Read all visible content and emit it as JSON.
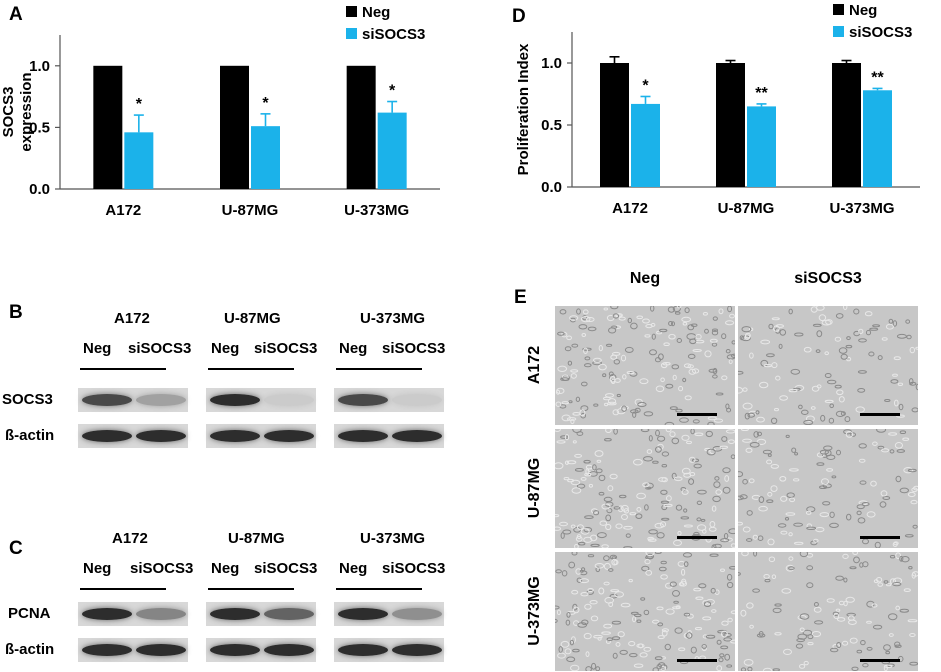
{
  "panels": {
    "A": "A",
    "B": "B",
    "C": "C",
    "D": "D",
    "E": "E"
  },
  "colors": {
    "neg": "#000000",
    "siSOCS3": "#1bb2ea"
  },
  "chart_data": [
    {
      "panel": "A",
      "type": "bar",
      "categories": [
        "A172",
        "U-87MG",
        "U-373MG"
      ],
      "series": [
        {
          "name": "Neg",
          "values": [
            1.0,
            1.0,
            1.0
          ],
          "errors": [
            0.0,
            0.0,
            0.0
          ],
          "sig": [
            "",
            "",
            ""
          ]
        },
        {
          "name": "siSOCS3",
          "values": [
            0.46,
            0.51,
            0.62
          ],
          "errors": [
            0.14,
            0.1,
            0.09
          ],
          "sig": [
            "*",
            "*",
            "*"
          ]
        }
      ],
      "ylabel": "SOCS3\nexpression",
      "ylim": [
        0,
        1.25
      ],
      "yticks": [
        "0.0",
        "0.5",
        "1.0"
      ],
      "legend": "top-right"
    },
    {
      "panel": "D",
      "type": "bar",
      "categories": [
        "A172",
        "U-87MG",
        "U-373MG"
      ],
      "series": [
        {
          "name": "Neg",
          "values": [
            1.0,
            1.0,
            1.0
          ],
          "errors": [
            0.05,
            0.02,
            0.02
          ],
          "sig": [
            "",
            "",
            ""
          ]
        },
        {
          "name": "siSOCS3",
          "values": [
            0.67,
            0.65,
            0.78
          ],
          "errors": [
            0.06,
            0.02,
            0.015
          ],
          "sig": [
            "*",
            "**",
            "**"
          ]
        }
      ],
      "ylabel": "Proliferation Index",
      "ylim": [
        0,
        1.25
      ],
      "yticks": [
        "0.0",
        "0.5",
        "1.0"
      ],
      "legend": "top-right"
    }
  ],
  "blotB": {
    "groups": [
      {
        "cell": "A172",
        "neg": "Neg",
        "si": "siSOCS3",
        "row1": [
          0.85,
          0.45
        ],
        "row2": [
          0.95,
          0.95
        ]
      },
      {
        "cell": "U-87MG",
        "neg": "Neg",
        "si": "siSOCS3",
        "row1": [
          0.95,
          0.15
        ],
        "row2": [
          0.95,
          0.95
        ]
      },
      {
        "cell": "U-373MG",
        "neg": "Neg",
        "si": "siSOCS3",
        "row1": [
          0.85,
          0.15
        ],
        "row2": [
          0.95,
          0.95
        ]
      }
    ],
    "rows": [
      "SOCS3",
      "ß-actin"
    ]
  },
  "blotC": {
    "groups": [
      {
        "cell": "A172",
        "neg": "Neg",
        "si": "siSOCS3",
        "row1": [
          0.95,
          0.6
        ],
        "row2": [
          0.95,
          0.95
        ]
      },
      {
        "cell": "U-87MG",
        "neg": "Neg",
        "si": "siSOCS3",
        "row1": [
          0.95,
          0.75
        ],
        "row2": [
          0.95,
          0.95
        ]
      },
      {
        "cell": "U-373MG",
        "neg": "Neg",
        "si": "siSOCS3",
        "row1": [
          0.95,
          0.55
        ],
        "row2": [
          0.95,
          0.95
        ]
      }
    ],
    "rows": [
      "PCNA",
      "ß-actin"
    ]
  },
  "micrographs": {
    "columns": [
      "Neg",
      "siSOCS3"
    ],
    "rows": [
      "A172",
      "U-87MG",
      "U-373MG"
    ]
  }
}
